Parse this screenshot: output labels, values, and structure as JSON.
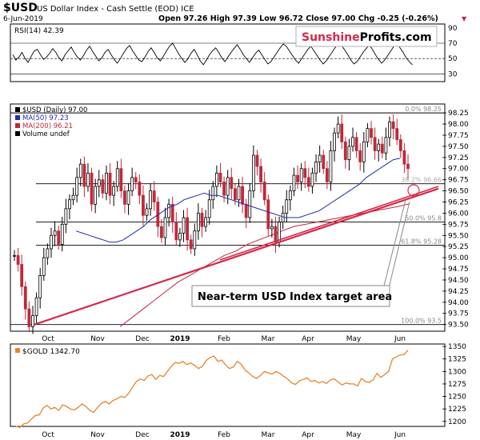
{
  "header": {
    "symbol": "$USD",
    "name": "US Dollar Index - Cash Settle (EOD) ICE",
    "date": "6-Jun-2019",
    "quote": "Open 97.26  High 97.39  Low 96.72  Close 97.00  Chg -0.25 (-0.26%)",
    "arrow": "▼"
  },
  "brand": {
    "part1": "Sunshine",
    "part2": "Profits.com",
    "color1": "#d42a4a",
    "color2": "#000000"
  },
  "rsi": {
    "label": "RSI(14) 42.39",
    "ticks": [
      "90",
      "70",
      "50",
      "30"
    ]
  },
  "main": {
    "legend": [
      {
        "text": "$USD (Daily) 97.00",
        "color": "#000000"
      },
      {
        "text": "MA(50) 97.23",
        "color": "#1f2ea8"
      },
      {
        "text": "MA(200) 96.21",
        "color": "#c0283a"
      },
      {
        "text": "Volume undef",
        "color": "#000000"
      }
    ],
    "price_ticks": [
      "98.25",
      "98.00",
      "97.75",
      "97.50",
      "97.25",
      "97.00",
      "96.75",
      "96.50",
      "96.25",
      "96.00",
      "95.75",
      "95.50",
      "95.25",
      "95.00",
      "94.75",
      "94.50",
      "94.25",
      "94.00",
      "93.75",
      "93.50"
    ],
    "fib_labels": [
      "0.0% 98.25",
      "38.2% 96.66",
      "50.0% 95.8",
      "61.8% 95.28",
      "100.0% 93.5"
    ],
    "annotation": "Near-term USD Index target area"
  },
  "gold": {
    "label": "$GOLD 1342.70",
    "ticks": [
      "1350",
      "1325",
      "1300",
      "1275",
      "1250",
      "1225",
      "1200"
    ]
  },
  "x_labels": [
    "Oct",
    "Nov",
    "Dec",
    "2019",
    "Feb",
    "Mar",
    "Apr",
    "May",
    "Jun"
  ],
  "colors": {
    "candle_up": "#000000",
    "candle_down": "#c0283a",
    "ma50": "#1f2ea8",
    "ma200": "#c0283a",
    "trend": "#d42a4a",
    "gold": "#e8832a"
  },
  "chart_data": [
    {
      "type": "line",
      "title": "RSI(14) 42.39",
      "ylim": [
        20,
        95
      ],
      "gridlines": [
        70,
        50,
        30
      ],
      "values": [
        55,
        48,
        52,
        58,
        50,
        45,
        53,
        60,
        62,
        55,
        49,
        52,
        57,
        63,
        58,
        51,
        47,
        55,
        60,
        65,
        58,
        52,
        48,
        54,
        61,
        66,
        59,
        53,
        47,
        51,
        58,
        62,
        55,
        49,
        44,
        50,
        57,
        63,
        67,
        60,
        54,
        48,
        46,
        52,
        59,
        64,
        58,
        51,
        47,
        53,
        60,
        66,
        70,
        63,
        56,
        50,
        45,
        50,
        57,
        62,
        55,
        47,
        42,
        48,
        55,
        60,
        64,
        58,
        51,
        46,
        52,
        58,
        63,
        68,
        62,
        55,
        50,
        45,
        51,
        57,
        61,
        55,
        49,
        43,
        46,
        52,
        58,
        64,
        69,
        66,
        60,
        54,
        48,
        44,
        50,
        56,
        62,
        66,
        60,
        54,
        48,
        43,
        47,
        53,
        59,
        65,
        70,
        67,
        61,
        55,
        48,
        43,
        46,
        52,
        58,
        63,
        68,
        62,
        55,
        49,
        44,
        48,
        54,
        60,
        66,
        71,
        64,
        58,
        51,
        46,
        42
      ]
    },
    {
      "type": "line",
      "title": "$USD (Daily) 97.00",
      "ylim": [
        93.35,
        98.45
      ],
      "series": [
        {
          "name": "$USD (Daily) 97.00",
          "values": [
            95.05,
            94.85,
            94.35,
            93.85,
            93.45,
            93.7,
            94.1,
            94.6,
            95.0,
            95.2,
            95.5,
            95.6,
            95.3,
            95.75,
            96.1,
            96.3,
            96.4,
            96.8,
            97.1,
            96.6,
            96.9,
            96.2,
            96.6,
            96.75,
            96.45,
            96.9,
            96.4,
            96.6,
            97.0,
            96.5,
            96.2,
            96.5,
            96.8,
            96.7,
            96.4,
            95.95,
            96.1,
            96.5,
            96.25,
            95.7,
            95.45,
            95.9,
            96.2,
            95.8,
            95.4,
            95.55,
            95.9,
            95.4,
            95.2,
            95.6,
            96.0,
            95.7,
            95.9,
            96.3,
            96.6,
            96.9,
            96.7,
            96.4,
            96.8,
            96.55,
            96.3,
            96.6,
            96.2,
            95.9,
            96.5,
            97.3,
            97.05,
            96.7,
            96.3,
            95.65,
            95.7,
            95.35,
            95.8,
            96.0,
            96.3,
            96.5,
            96.85,
            96.7,
            97.0,
            96.8,
            96.6,
            96.9,
            97.15,
            97.3,
            97.0,
            96.7,
            97.4,
            97.8,
            98.0,
            97.6,
            97.2,
            97.5,
            97.7,
            97.4,
            97.15,
            97.6,
            97.9,
            97.7,
            97.4,
            97.55,
            97.35,
            97.7,
            98.05,
            97.9,
            97.65,
            97.4,
            97.1,
            97.0
          ]
        },
        {
          "name": "MA(50) 97.23",
          "values": [
            95.6,
            95.55,
            95.5,
            95.45,
            95.4,
            95.35,
            95.35,
            95.4,
            95.5,
            95.6,
            95.7,
            95.85,
            95.95,
            96.05,
            96.15,
            96.2,
            96.3,
            96.35,
            96.4,
            96.45,
            96.4,
            96.4,
            96.35,
            96.3,
            96.25,
            96.2,
            96.15,
            96.1,
            96.05,
            96.0,
            95.95,
            95.9,
            95.9,
            95.9,
            95.95,
            96.0,
            96.05,
            96.15,
            96.25,
            96.35,
            96.45,
            96.55,
            96.65,
            96.8,
            96.9,
            97.0,
            97.1,
            97.2,
            97.23
          ]
        },
        {
          "name": "MA(200) 96.21",
          "values": [
            93.45,
            93.65,
            93.85,
            94.05,
            94.25,
            94.45,
            94.6,
            94.75,
            94.9,
            95.05,
            95.15,
            95.3,
            95.4,
            95.5,
            95.6,
            95.7,
            95.75,
            95.8,
            95.85,
            95.9,
            95.95,
            96.0,
            96.05,
            96.1,
            96.15,
            96.21
          ]
        }
      ]
    },
    {
      "type": "line",
      "title": "$GOLD 1342.70",
      "ylim": [
        1190,
        1355
      ],
      "series": [
        {
          "name": "$GOLD 1342.70",
          "values": [
            1190,
            1188,
            1195,
            1197,
            1205,
            1212,
            1213,
            1227,
            1232,
            1225,
            1228,
            1222,
            1233,
            1230,
            1225,
            1223,
            1228,
            1235,
            1230,
            1222,
            1218,
            1228,
            1236,
            1240,
            1235,
            1242,
            1245,
            1250,
            1248,
            1256,
            1268,
            1280,
            1285,
            1282,
            1291,
            1294,
            1284,
            1292,
            1290,
            1300,
            1310,
            1318,
            1316,
            1320,
            1314,
            1317,
            1312,
            1306,
            1310,
            1322,
            1328,
            1331,
            1320,
            1323,
            1313,
            1306,
            1309,
            1320,
            1315,
            1303,
            1297,
            1290,
            1286,
            1292,
            1300,
            1297,
            1295,
            1300,
            1296,
            1290,
            1285,
            1277,
            1274,
            1281,
            1284,
            1287,
            1280,
            1282,
            1277,
            1280,
            1276,
            1283,
            1285,
            1279,
            1273,
            1277,
            1275,
            1275,
            1271,
            1286,
            1280,
            1278,
            1283,
            1296,
            1288,
            1294,
            1300,
            1325,
            1329,
            1333,
            1334,
            1342.7
          ]
        }
      ]
    }
  ]
}
